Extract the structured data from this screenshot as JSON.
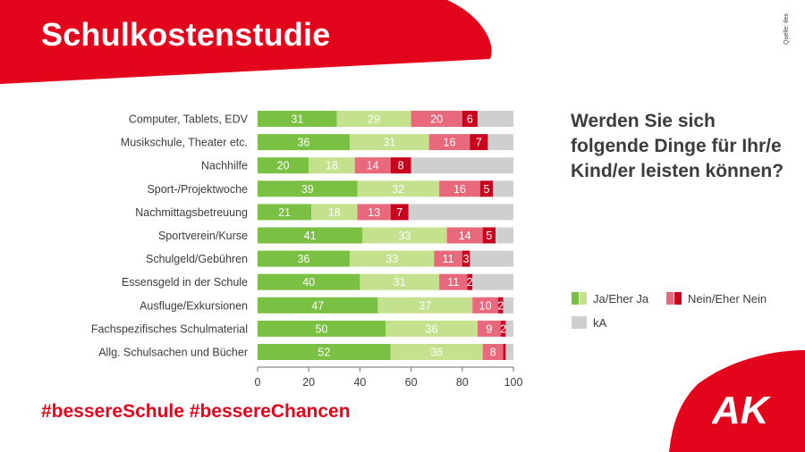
{
  "header": {
    "title": "Schulkostenstudie",
    "source": "Quelle: ifes"
  },
  "question": "Werden Sie sich folgende Dinge für Ihr/e Kind/er leisten können?",
  "footer": {
    "hashtags": "#bessereSchule #bessereChancen",
    "logo": "AK"
  },
  "colors": {
    "brand_red": "#e3051b",
    "ja": "#7ac143",
    "eher_ja": "#c4e28d",
    "nein": "#c8001e",
    "eher_nein": "#e8687c",
    "ka": "#cfcfcf"
  },
  "legend": {
    "items": [
      {
        "label": "Ja/Eher Ja",
        "colors": [
          "#7ac143",
          "#c4e28d"
        ]
      },
      {
        "label": "Nein/Eher Nein",
        "colors": [
          "#e8687c",
          "#c8001e"
        ]
      },
      {
        "label": "kA",
        "colors": [
          "#cfcfcf"
        ]
      }
    ]
  },
  "chart_data": {
    "type": "bar",
    "orientation": "horizontal",
    "stacked": true,
    "title": "",
    "xlabel": "",
    "ylabel": "",
    "xlim": [
      0,
      100
    ],
    "xticks": [
      0,
      20,
      40,
      60,
      80,
      100
    ],
    "categories": [
      "Computer, Tablets, EDV",
      "Musikschule, Theater etc.",
      "Nachhilfe",
      "Sport-/Projektwoche",
      "Nachmittagsbetreuung",
      "Sportverein/Kurse",
      "Schulgeld/Gebühren",
      "Essensgeld in der Schule",
      "Ausfluge/Exkursionen",
      "Fachspezifisches Schulmaterial",
      "Allg. Schulsachen und Bücher"
    ],
    "series": [
      {
        "values": [
          31,
          36,
          20,
          39,
          21,
          41,
          36,
          40,
          47,
          50,
          52
        ],
        "color": "#7ac143"
      },
      {
        "values": [
          29,
          31,
          18,
          32,
          18,
          33,
          33,
          31,
          37,
          36,
          36
        ],
        "color": "#c4e28d"
      },
      {
        "values": [
          20,
          16,
          14,
          16,
          13,
          14,
          11,
          11,
          10,
          9,
          8
        ],
        "color": "#e8687c"
      },
      {
        "values": [
          6,
          7,
          8,
          5,
          7,
          5,
          3,
          2,
          2,
          2,
          1
        ],
        "color": "#c8001e"
      },
      {
        "values": [
          14,
          10,
          40,
          8,
          41,
          7,
          17,
          16,
          4,
          3,
          3
        ],
        "color": "#cfcfcf"
      }
    ],
    "data_labels": [
      [
        "31",
        "29",
        "20",
        "6",
        ""
      ],
      [
        "36",
        "31",
        "16",
        "7",
        ""
      ],
      [
        "20",
        "18",
        "14",
        "8",
        ""
      ],
      [
        "39",
        "32",
        "16",
        "5",
        ""
      ],
      [
        "21",
        "18",
        "13",
        "7",
        ""
      ],
      [
        "41",
        "33",
        "14",
        "5",
        ""
      ],
      [
        "36",
        "33",
        "11",
        "3",
        ""
      ],
      [
        "40",
        "31",
        "11",
        "2",
        ""
      ],
      [
        "47",
        "37",
        "10",
        "2",
        ""
      ],
      [
        "50",
        "36",
        "9",
        "2",
        ""
      ],
      [
        "52",
        "36",
        "8",
        "",
        ""
      ]
    ],
    "grid": false,
    "legend_position": "right"
  }
}
